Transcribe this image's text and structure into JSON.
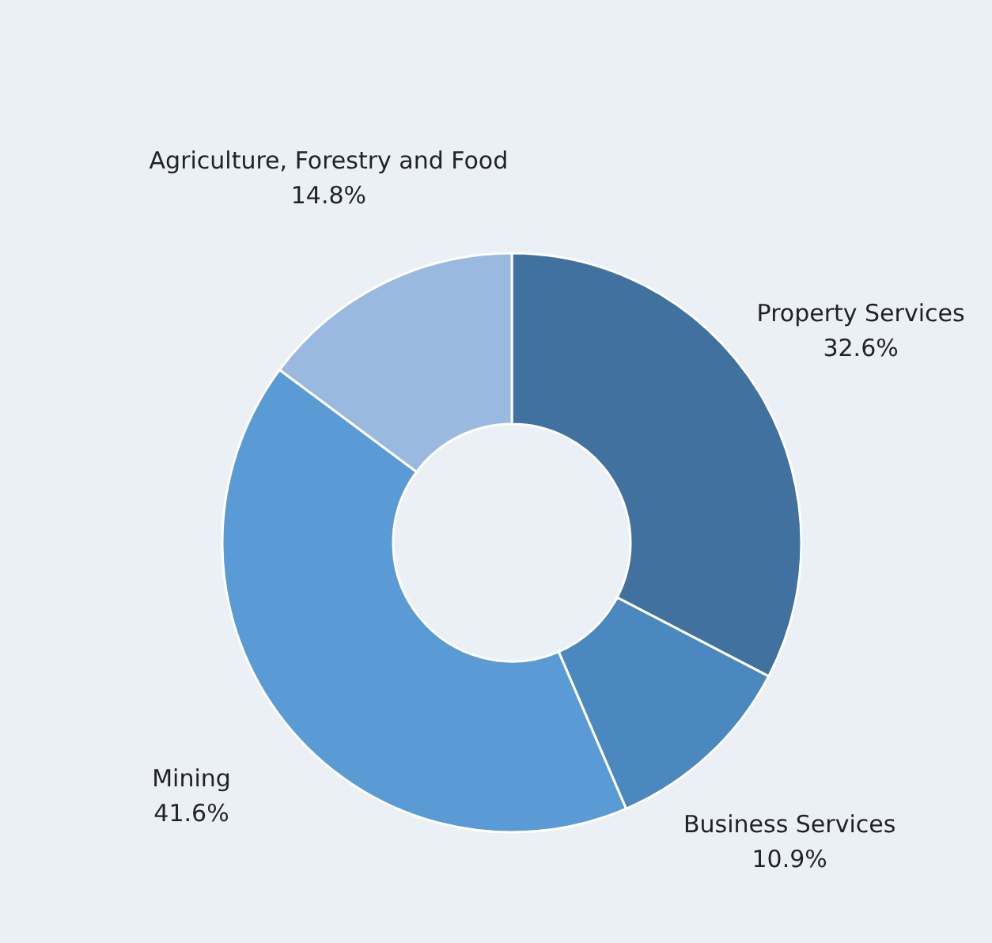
{
  "chart_data": {
    "type": "donut",
    "categories": [
      "Property Services",
      "Business Services",
      "Mining",
      "Agriculture, Forestry and Food"
    ],
    "values": [
      32.6,
      10.9,
      41.6,
      14.8
    ],
    "value_labels": [
      "32.6%",
      "10.9%",
      "41.6%",
      "14.8%"
    ],
    "colors": [
      "#41729f",
      "#4a88bf",
      "#5b9bd5",
      "#9ab9e0"
    ],
    "legend": false
  }
}
